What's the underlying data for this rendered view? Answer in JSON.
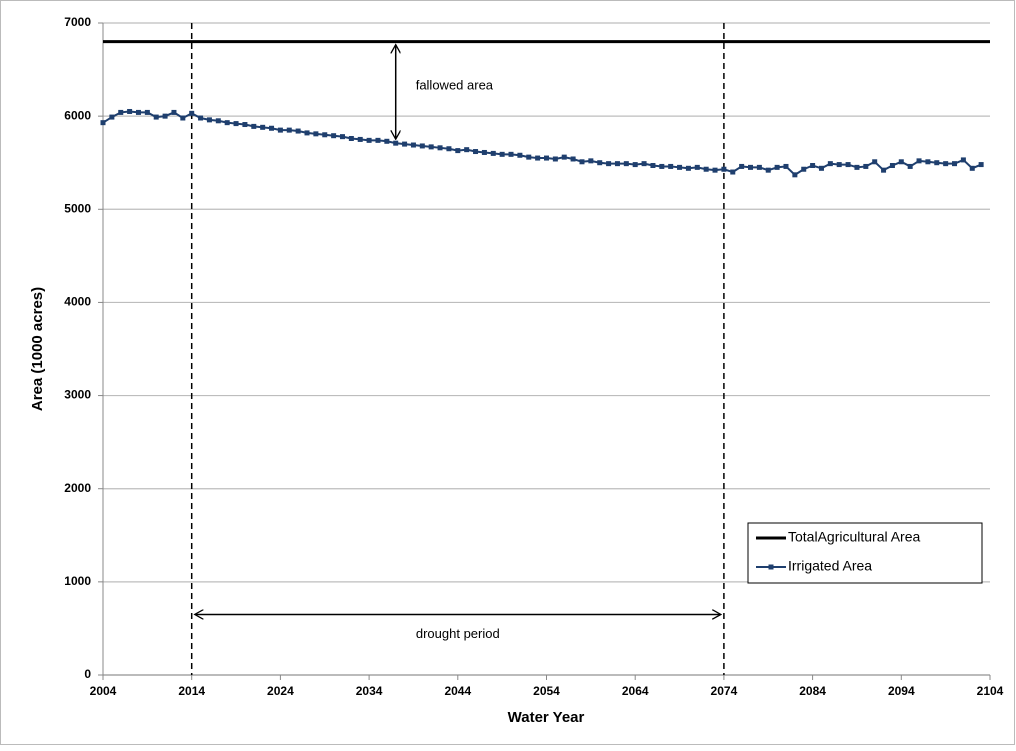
{
  "chart_data": {
    "type": "line",
    "x_label": "Water Year",
    "y_label": "Area (1000 acres)",
    "xlim": [
      2004,
      2104
    ],
    "xticks": [
      2004,
      2014,
      2024,
      2034,
      2044,
      2054,
      2064,
      2074,
      2084,
      2094,
      2104
    ],
    "ylim": [
      0,
      7000
    ],
    "yticks": [
      0,
      1000,
      2000,
      3000,
      4000,
      5000,
      6000,
      7000
    ],
    "grid": true,
    "legend": "lower right",
    "vlines": [
      2014,
      2074
    ],
    "annotations": [
      {
        "text": "fallowed area",
        "x": 2037,
        "y": [
          6800,
          5720
        ]
      },
      {
        "text": "drought period",
        "x": [
          2014,
          2074
        ],
        "y": 650
      }
    ],
    "series": [
      {
        "name": "TotalAgricultural Area",
        "color": "#000000",
        "x": [
          2004,
          2104
        ],
        "values": [
          6800,
          6800
        ]
      },
      {
        "name": "Irrigated Area",
        "color": "#1f3f6e",
        "marker": "square",
        "x": [
          2004,
          2005,
          2006,
          2007,
          2008,
          2009,
          2010,
          2011,
          2012,
          2013,
          2014,
          2015,
          2016,
          2017,
          2018,
          2019,
          2020,
          2021,
          2022,
          2023,
          2024,
          2025,
          2026,
          2027,
          2028,
          2029,
          2030,
          2031,
          2032,
          2033,
          2034,
          2035,
          2036,
          2037,
          2038,
          2039,
          2040,
          2041,
          2042,
          2043,
          2044,
          2045,
          2046,
          2047,
          2048,
          2049,
          2050,
          2051,
          2052,
          2053,
          2054,
          2055,
          2056,
          2057,
          2058,
          2059,
          2060,
          2061,
          2062,
          2063,
          2064,
          2065,
          2066,
          2067,
          2068,
          2069,
          2070,
          2071,
          2072,
          2073,
          2074,
          2075,
          2076,
          2077,
          2078,
          2079,
          2080,
          2081,
          2082,
          2083,
          2084,
          2085,
          2086,
          2087,
          2088,
          2089,
          2090,
          2091,
          2092,
          2093,
          2094,
          2095,
          2096,
          2097,
          2098,
          2099,
          2100,
          2101,
          2102,
          2103
        ],
        "values": [
          5930,
          5990,
          6040,
          6050,
          6040,
          6040,
          5990,
          6000,
          6040,
          5980,
          6030,
          5980,
          5960,
          5950,
          5930,
          5920,
          5910,
          5890,
          5880,
          5870,
          5850,
          5850,
          5840,
          5820,
          5810,
          5800,
          5790,
          5780,
          5760,
          5750,
          5740,
          5740,
          5730,
          5710,
          5700,
          5690,
          5680,
          5670,
          5660,
          5650,
          5630,
          5640,
          5620,
          5610,
          5600,
          5590,
          5590,
          5580,
          5560,
          5550,
          5550,
          5540,
          5560,
          5540,
          5510,
          5520,
          5500,
          5490,
          5490,
          5490,
          5480,
          5490,
          5470,
          5460,
          5460,
          5450,
          5440,
          5450,
          5430,
          5420,
          5430,
          5400,
          5460,
          5450,
          5450,
          5420,
          5450,
          5460,
          5370,
          5430,
          5470,
          5440,
          5490,
          5480,
          5480,
          5450,
          5460,
          5510,
          5420,
          5470,
          5510,
          5460,
          5520,
          5510,
          5500,
          5490,
          5490,
          5530,
          5440,
          5480
        ]
      }
    ]
  }
}
